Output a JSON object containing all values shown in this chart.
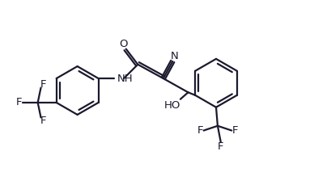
{
  "line_color": "#1a1a2e",
  "background_color": "#ffffff",
  "line_width": 1.6,
  "font_size": 9.5,
  "figsize": [
    4.1,
    2.24
  ],
  "dpi": 100,
  "xlim": [
    0,
    10.5
  ],
  "ylim": [
    0,
    5.8
  ]
}
